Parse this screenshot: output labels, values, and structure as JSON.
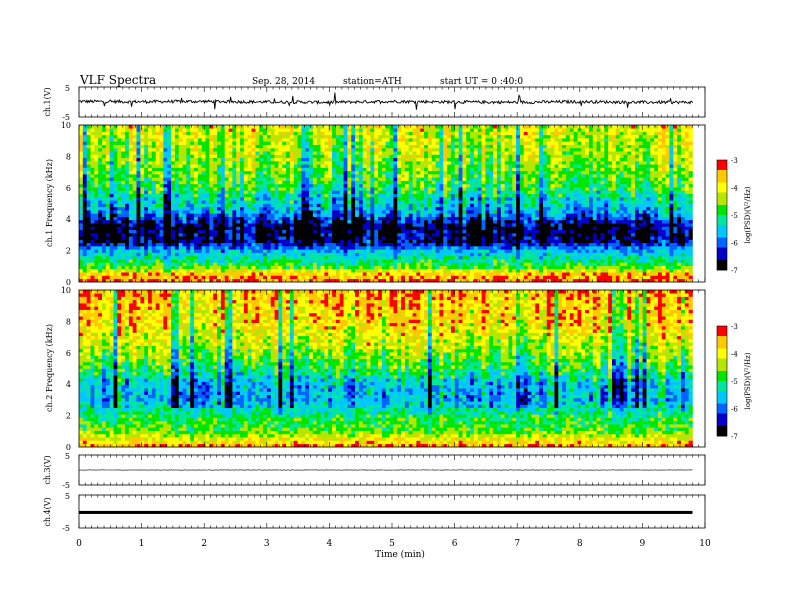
{
  "header": {
    "title": "VLF Spectra",
    "date": "Sep. 28, 2014",
    "station": "station=ATH",
    "start": "start UT = 0 :40:0"
  },
  "colors": {
    "waveform": "#000000",
    "background": "#ffffff",
    "colormap": [
      "#000000",
      "#0000c8",
      "#0064ff",
      "#00c8ff",
      "#00e6a0",
      "#00e600",
      "#b4e600",
      "#ffff00",
      "#ffc800",
      "#ff0000",
      "#ffffff"
    ]
  },
  "chart_data": [
    {
      "type": "line",
      "id": "ch1",
      "ylabel": "ch.1(V)",
      "ytick_labels": [
        "5",
        "-5"
      ],
      "ylim": [
        -5,
        5
      ],
      "x_unit": "min",
      "x": [
        0,
        1,
        2,
        3,
        4,
        5,
        6,
        7,
        8,
        9,
        9.8
      ],
      "y": [
        0.2,
        0.1,
        0.2,
        0.0,
        -0.1,
        0.2,
        0.0,
        -0.1,
        0.1,
        -0.1,
        -0.1
      ],
      "noise_amplitude_v": 0.5
    },
    {
      "type": "heatmap",
      "id": "ch1-spectrogram",
      "ylabel": "ch.1 Frequency (kHz)",
      "ytick_labels": [
        "0",
        "2",
        "4",
        "6",
        "8",
        "10"
      ],
      "ylim_khz": [
        0,
        10
      ],
      "xlim_min": [
        0,
        9.8
      ],
      "colorbar": {
        "label": "log(PSD)(V²/Hz)",
        "ticks": [
          "-3",
          "-4",
          "-5",
          "-6",
          "-7"
        ],
        "range": [
          -7,
          -3
        ]
      },
      "band_profile_logpsd": [
        {
          "f_khz": 0.0,
          "level": -3.4
        },
        {
          "f_khz": 0.5,
          "level": -3.6
        },
        {
          "f_khz": 1.0,
          "level": -4.8
        },
        {
          "f_khz": 2.0,
          "level": -5.6
        },
        {
          "f_khz": 2.6,
          "level": -6.6
        },
        {
          "f_khz": 3.5,
          "level": -6.8
        },
        {
          "f_khz": 4.5,
          "level": -5.7
        },
        {
          "f_khz": 6.0,
          "level": -4.9
        },
        {
          "f_khz": 8.0,
          "level": -4.4
        },
        {
          "f_khz": 10.0,
          "level": -4.1
        }
      ]
    },
    {
      "type": "heatmap",
      "id": "ch2-spectrogram",
      "ylabel": "ch.2 Frequency (kHz)",
      "ytick_labels": [
        "0",
        "2",
        "4",
        "6",
        "8",
        "10"
      ],
      "ylim_khz": [
        0,
        10
      ],
      "xlim_min": [
        0,
        9.8
      ],
      "colorbar": {
        "label": "log(PSD)(V²/Hz)",
        "ticks": [
          "-3",
          "-4",
          "-5",
          "-6",
          "-7"
        ],
        "range": [
          -7,
          -3
        ]
      },
      "band_profile_logpsd": [
        {
          "f_khz": 0.0,
          "level": -3.4
        },
        {
          "f_khz": 1.0,
          "level": -4.6
        },
        {
          "f_khz": 2.0,
          "level": -5.0
        },
        {
          "f_khz": 3.0,
          "level": -5.7
        },
        {
          "f_khz": 4.0,
          "level": -5.6
        },
        {
          "f_khz": 5.0,
          "level": -4.9
        },
        {
          "f_khz": 6.5,
          "level": -4.3
        },
        {
          "f_khz": 8.0,
          "level": -3.8
        },
        {
          "f_khz": 10.0,
          "level": -3.6
        }
      ]
    },
    {
      "type": "line",
      "id": "ch3",
      "ylabel": "ch.3(V)",
      "ytick_labels": [
        "5",
        "-5"
      ],
      "ylim": [
        -5,
        5
      ],
      "x": [
        0,
        9.8
      ],
      "y": [
        0.0,
        0.0
      ],
      "noise_amplitude_v": 0.08
    },
    {
      "type": "line",
      "id": "ch4",
      "ylabel": "ch.4(V)",
      "ytick_labels": [
        "5",
        "-5"
      ],
      "ylim": [
        -5,
        5
      ],
      "x": [
        0,
        9.8
      ],
      "y": [
        0.0,
        0.0
      ],
      "line_thickness_v": 0.35
    }
  ],
  "xaxis": {
    "label": "Time (min)",
    "tick_labels": [
      "0",
      "1",
      "2",
      "3",
      "4",
      "5",
      "6",
      "7",
      "8",
      "9",
      "10"
    ],
    "xlim": [
      0,
      10
    ]
  }
}
